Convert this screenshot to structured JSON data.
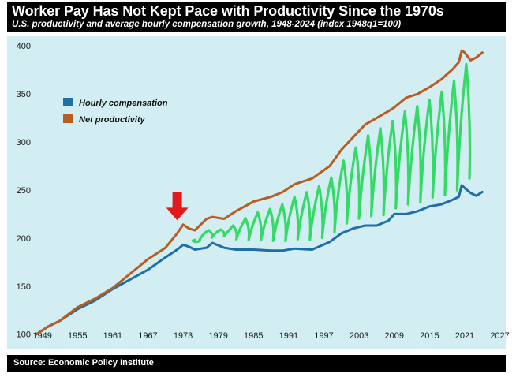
{
  "header": {
    "title": "Worker Pay Has Not Kept Pace with Productivity Since the 1970s",
    "subtitle": "U.S. productivity and average hourly compensation growth, 1948-2024 (index 1948q1=100)"
  },
  "footer": {
    "source": "Source: Economic Policy Institute"
  },
  "colors": {
    "background": "#d2eef2",
    "compensation": "#1f6fa6",
    "productivity": "#b85c22",
    "arrow": "#e11b1b",
    "scribble": "#27d85a"
  },
  "chart_data": {
    "type": "line",
    "title": "Worker Pay Has Not Kept Pace with Productivity Since the 1970s",
    "subtitle": "U.S. productivity and average hourly compensation growth, 1948-2024 (index 1948q1=100)",
    "xlabel": "",
    "ylabel": "",
    "xlim": [
      1943,
      2028
    ],
    "ylim": [
      85,
      410
    ],
    "x_ticks": [
      1949,
      1955,
      1961,
      1967,
      1973,
      1979,
      1985,
      1991,
      1997,
      2003,
      2009,
      2015,
      2021,
      2027
    ],
    "y_ticks": [
      100,
      150,
      200,
      250,
      300,
      350,
      400
    ],
    "legend_position": "top-left",
    "series": [
      {
        "name": "Hourly compensation",
        "color": "#1f6fa6",
        "x": [
          1948,
          1950,
          1952,
          1955,
          1958,
          1961,
          1964,
          1967,
          1970,
          1972,
          1973,
          1974,
          1975,
          1977,
          1978,
          1980,
          1982,
          1985,
          1988,
          1990,
          1992,
          1995,
          1998,
          2000,
          2002,
          2004,
          2006,
          2008,
          2009,
          2011,
          2013,
          2015,
          2017,
          2019,
          2020,
          2020.5,
          2021,
          2022,
          2023,
          2024
        ],
        "values": [
          100,
          108,
          114,
          126,
          135,
          147,
          157,
          167,
          180,
          188,
          193,
          191,
          188,
          190,
          195,
          190,
          188,
          188,
          187,
          187,
          189,
          188,
          196,
          205,
          210,
          213,
          213,
          218,
          225,
          225,
          228,
          233,
          235,
          240,
          243,
          255,
          252,
          247,
          244,
          248
        ]
      },
      {
        "name": "Net productivity",
        "color": "#b85c22",
        "x": [
          1948,
          1950,
          1952,
          1955,
          1958,
          1961,
          1964,
          1967,
          1970,
          1972,
          1973,
          1974,
          1975,
          1977,
          1978,
          1980,
          1982,
          1985,
          1988,
          1990,
          1992,
          1995,
          1998,
          2000,
          2002,
          2004,
          2006,
          2008,
          2009,
          2011,
          2013,
          2015,
          2017,
          2019,
          2020,
          2020.5,
          2021,
          2022,
          2023,
          2024
        ],
        "values": [
          100,
          108,
          114,
          128,
          137,
          148,
          163,
          178,
          190,
          205,
          214,
          210,
          208,
          220,
          222,
          220,
          228,
          238,
          243,
          248,
          256,
          262,
          275,
          292,
          305,
          318,
          325,
          332,
          336,
          346,
          350,
          357,
          365,
          376,
          383,
          395,
          393,
          385,
          388,
          393
        ]
      }
    ],
    "annotations": [
      {
        "type": "arrow",
        "label": "down-arrow",
        "x": 1972,
        "y": 225,
        "color": "#e11b1b"
      },
      {
        "type": "scribble",
        "label": "green-scribble",
        "x_range": [
          1975,
          2021
        ],
        "color": "#27d85a"
      }
    ]
  }
}
